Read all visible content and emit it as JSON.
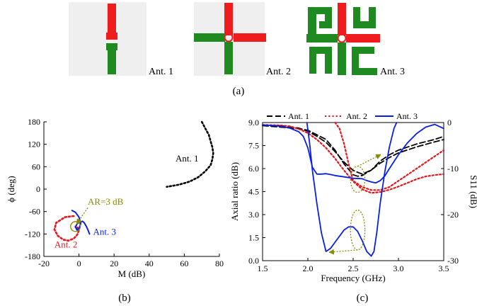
{
  "colors": {
    "ant1": "#000000",
    "ant2": "#e8141b",
    "ant3": "#0a1ee6",
    "annotation": "#8a8a00",
    "green": "#1f8a1f",
    "red": "#ee1c1c",
    "panel_bg": "#efefef"
  },
  "panel_a": {
    "label": "(a)",
    "antennas": [
      {
        "label": "Ant. 1",
        "shape": "dipole-vertical"
      },
      {
        "label": "Ant. 2",
        "shape": "crossed-dipole"
      },
      {
        "label": "Ant. 3",
        "shape": "crossed-dipole-with-hooks"
      }
    ]
  },
  "panel_b": {
    "label": "(b)"
  },
  "panel_c": {
    "label": "(c)"
  },
  "chart_data": [
    {
      "type": "line",
      "panel": "b",
      "title": "",
      "xlabel": "M (dB)",
      "ylabel": "ϕ (deg)",
      "xlim": [
        -20,
        80
      ],
      "ylim": [
        -180,
        180
      ],
      "xticks": [
        "-20",
        "0",
        "20",
        "40",
        "60",
        "80"
      ],
      "yticks": [
        "-180",
        "-120",
        "-60",
        "0",
        "60",
        "120",
        "180"
      ],
      "grid": false,
      "annotations": [
        {
          "text": "AR=3 dB",
          "x": 5,
          "y": -42
        },
        {
          "text": "Ant. 1",
          "x": 55,
          "y": 74
        },
        {
          "text": "Ant. 2",
          "x": -14,
          "y": -156
        },
        {
          "text": "Ant. 3",
          "x": 8,
          "y": -122
        }
      ],
      "series": [
        {
          "name": "Ant. 1",
          "style": "dotted",
          "x": [
            70,
            72,
            74,
            75,
            76,
            76.5,
            76,
            75,
            72,
            68,
            63,
            57,
            50
          ],
          "y": [
            180,
            162,
            145,
            128,
            112,
            96,
            80,
            64,
            48,
            32,
            20,
            12,
            6
          ]
        },
        {
          "name": "Ant. 2",
          "style": "dotted",
          "x": [
            -3,
            -8,
            -13,
            -14,
            -12,
            -9,
            -6,
            -3,
            -1,
            0,
            -1,
            -2
          ],
          "y": [
            -72,
            -75,
            -90,
            -108,
            -125,
            -135,
            -138,
            -132,
            -122,
            -110,
            -102,
            -100
          ]
        },
        {
          "name": "Ant. 3",
          "style": "solid",
          "x": [
            -4,
            -2,
            0,
            1,
            0,
            -1,
            -2,
            -1,
            0.5,
            2,
            3,
            4,
            5,
            6
          ],
          "y": [
            -57,
            -62,
            -75,
            -92,
            -105,
            -110,
            -102,
            -92,
            -88,
            -86,
            -90,
            -98,
            -108,
            -120
          ]
        }
      ],
      "ar3_circle": {
        "cx": -2,
        "cy": -100,
        "r_data_x": 2.8
      }
    },
    {
      "type": "line",
      "panel": "c",
      "title": "",
      "xlabel": "Frequency (GHz)",
      "ylabel": "Axial ratio (dB)",
      "y2label": "S11 (dB)",
      "xlim": [
        1.5,
        3.5
      ],
      "ylim": [
        0,
        9
      ],
      "y2lim": [
        -30,
        0
      ],
      "xticks": [
        "1.5",
        "2.0",
        "2.5",
        "3.0",
        "3.5"
      ],
      "yticks": [
        "0.0",
        "1.5",
        "3.0",
        "4.5",
        "6.0",
        "7.5",
        "9.0"
      ],
      "y2ticks": [
        "-30",
        "-20",
        "-10",
        "0"
      ],
      "grid": false,
      "legend": {
        "placement": "top",
        "entries": [
          "Ant. 1",
          "Ant. 2",
          "Ant. 3"
        ]
      },
      "series": [
        {
          "name": "Ant. 1",
          "axis": "S11",
          "style": "dashed",
          "x": [
            1.5,
            1.7,
            1.9,
            2.0,
            2.1,
            2.2,
            2.3,
            2.4,
            2.5,
            2.6,
            2.7,
            2.8,
            2.9,
            3.0,
            3.2,
            3.4,
            3.5
          ],
          "y": [
            -0.6,
            -0.7,
            -1.2,
            -1.9,
            -3.0,
            -4.3,
            -6.3,
            -8.6,
            -10.4,
            -11.2,
            -10.3,
            -8.8,
            -7.6,
            -6.6,
            -5.3,
            -4.2,
            -3.7
          ]
        },
        {
          "name": "Ant. 1",
          "axis": "AR",
          "style": "dashed",
          "x": [
            1.5,
            1.7,
            1.9,
            2.0,
            2.1,
            2.2,
            2.3,
            2.4,
            2.5,
            2.55,
            2.6,
            2.7,
            2.8,
            2.9,
            3.0,
            3.2,
            3.4,
            3.5
          ],
          "y": [
            8.8,
            8.7,
            8.6,
            8.5,
            8.2,
            7.9,
            7.2,
            6.3,
            5.6,
            5.5,
            5.55,
            5.9,
            6.5,
            6.9,
            7.2,
            7.6,
            7.9,
            8.1
          ]
        },
        {
          "name": "Ant. 2",
          "axis": "S11",
          "style": "dotted",
          "x": [
            1.5,
            1.7,
            1.8,
            1.9,
            2.0,
            2.1,
            2.2,
            2.3,
            2.4,
            2.5,
            2.6,
            2.7,
            2.8,
            2.9,
            3.0,
            3.1,
            3.2,
            3.3,
            3.4,
            3.5
          ],
          "y": [
            -0.5,
            -0.6,
            -0.8,
            -1.4,
            -2.3,
            -3.7,
            -5.5,
            -7.8,
            -10.4,
            -12.8,
            -14.5,
            -15.3,
            -15.1,
            -14.6,
            -13.9,
            -13.1,
            -12.3,
            -11.7,
            -11.4,
            -11.2
          ]
        },
        {
          "name": "Ant. 2",
          "axis": "AR",
          "style": "dotted",
          "x": [
            2.3,
            2.35,
            2.4,
            2.45,
            2.5,
            2.6,
            2.7,
            2.8,
            2.9,
            3.0,
            3.1,
            3.2,
            3.3,
            3.4,
            3.5
          ],
          "y": [
            9.0,
            8.6,
            7.6,
            6.3,
            5.2,
            4.8,
            4.6,
            4.6,
            4.8,
            5.2,
            5.6,
            6.0,
            6.4,
            6.8,
            7.2
          ]
        },
        {
          "name": "Ant. 3",
          "axis": "S11",
          "style": "solid",
          "x": [
            1.5,
            1.7,
            1.8,
            1.9,
            1.95,
            2.0,
            2.05,
            2.1,
            2.15,
            2.2,
            2.25,
            2.3,
            2.4,
            2.5,
            2.6,
            2.65,
            2.7,
            2.75,
            2.8,
            2.85,
            2.9,
            3.0,
            3.1,
            3.2,
            3.3,
            3.4,
            3.5
          ],
          "y": [
            -0.5,
            -0.8,
            -1.2,
            -2.0,
            -3.0,
            -5.5,
            -9.7,
            -11.2,
            -11.2,
            -11.1,
            -11.3,
            -11.5,
            -11.8,
            -12.1,
            -12.2,
            -12.6,
            -12.9,
            -13.1,
            -12.6,
            -11.6,
            -10.0,
            -7.0,
            -4.4,
            -2.4,
            -1.0,
            -0.4,
            -1.3
          ]
        },
        {
          "name": "Ant. 3",
          "axis": "AR",
          "style": "solid",
          "x": [
            1.99,
            2.02,
            2.05,
            2.1,
            2.15,
            2.2,
            2.25,
            2.3,
            2.35,
            2.4,
            2.45,
            2.5,
            2.55,
            2.6,
            2.65,
            2.7,
            2.73,
            2.76,
            2.8,
            2.85,
            2.9,
            2.95,
            2.98
          ],
          "y": [
            9.0,
            7.6,
            5.9,
            3.7,
            1.8,
            0.6,
            0.8,
            1.2,
            1.6,
            2.0,
            2.2,
            2.2,
            1.9,
            1.3,
            0.6,
            0.3,
            0.6,
            1.8,
            3.8,
            5.8,
            7.4,
            8.6,
            9.0
          ]
        }
      ],
      "markers": [
        {
          "kind": "ellipse",
          "cx": 2.55,
          "cy": 5.3,
          "rx": 0.08,
          "ry": 0.85
        },
        {
          "kind": "ellipse",
          "cx": 2.55,
          "cy": 2.0,
          "rx": 0.08,
          "ry": 1.3
        }
      ]
    }
  ]
}
